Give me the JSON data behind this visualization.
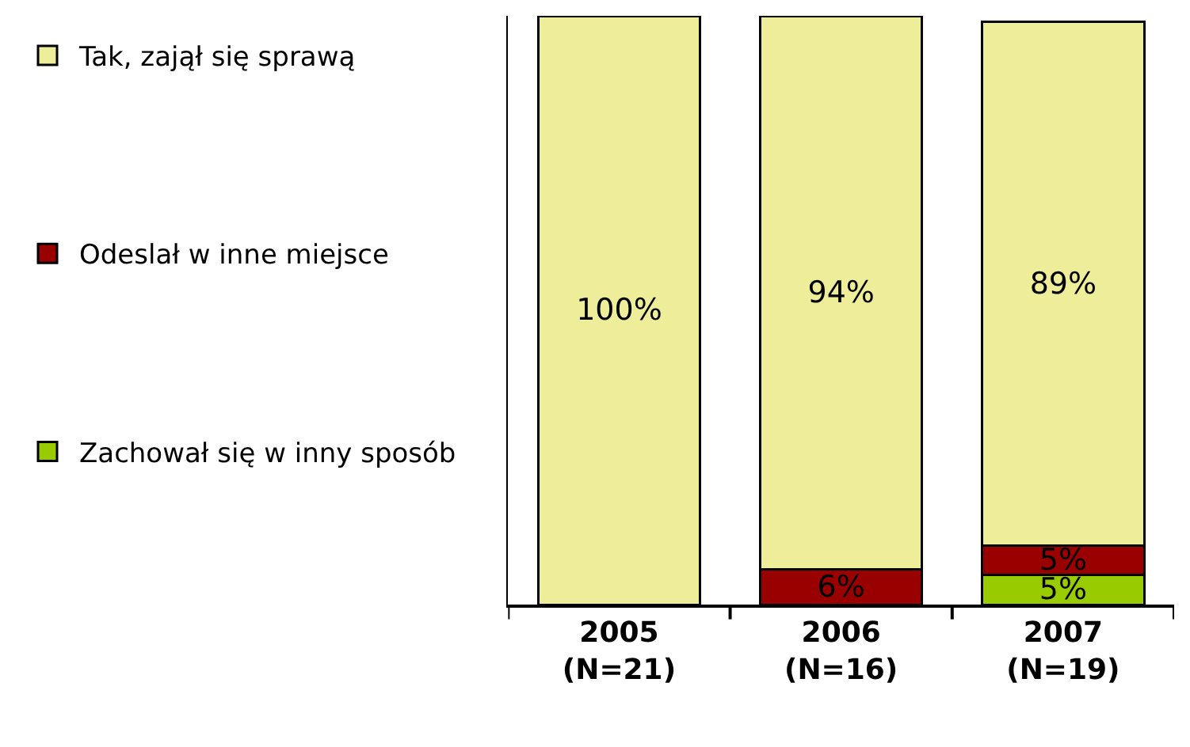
{
  "chart_data": {
    "type": "bar",
    "stacked": true,
    "categories": [
      "2005\n(N=21)",
      "2006\n(N=16)",
      "2007\n(N=19)"
    ],
    "series": [
      {
        "name": "Zachował się w inny sposób",
        "color": "#99cc00",
        "values": [
          0,
          0,
          5
        ],
        "value_labels": [
          null,
          null,
          "5%"
        ]
      },
      {
        "name": "Odeslał w inne miejsce",
        "color": "#990000",
        "values": [
          0,
          6,
          5
        ],
        "value_labels": [
          null,
          "6%",
          "5%"
        ]
      },
      {
        "name": "Tak, zajął się sprawą",
        "color": "#eded9a",
        "values": [
          100,
          94,
          89
        ],
        "value_labels": [
          "100%",
          "94%",
          "89%"
        ]
      }
    ],
    "legend": "left"
  }
}
